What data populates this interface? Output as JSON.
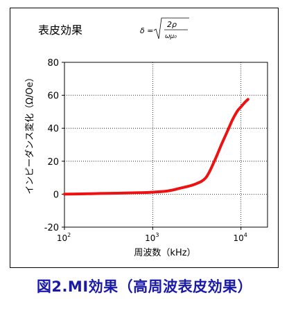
{
  "caption": "図2.MI効果（高周波表皮効果）",
  "colors": {
    "series": "#ee1111",
    "caption": "#1a1aa8",
    "axis": "#000000",
    "grid": "#000000"
  },
  "chart_data": {
    "type": "line",
    "title": "表皮効果",
    "formula": {
      "lhs": "δ =",
      "numerator": "2ρ",
      "denominator": "ωμ₀"
    },
    "xlabel": "周波数（kHz）",
    "ylabel": "インピーダンス変化（Ω/Oe）",
    "xscale": "log",
    "xlim": [
      100,
      20000
    ],
    "ylim": [
      -20,
      80
    ],
    "yticks": [
      -20,
      0,
      20,
      40,
      60,
      80
    ],
    "xticks": [
      {
        "value": 100,
        "base": "10",
        "exp": "2"
      },
      {
        "value": 1000,
        "base": "10",
        "exp": "3"
      },
      {
        "value": 10000,
        "base": "10",
        "exp": "4"
      }
    ],
    "grid": "dotted",
    "series": [
      {
        "x": [
          100,
          200,
          400,
          700,
          1000,
          1500,
          2000,
          3000,
          4000,
          5000,
          6000,
          7000,
          8000,
          9000,
          10000,
          11000,
          12000
        ],
        "y": [
          0,
          0.3,
          0.6,
          0.9,
          1.2,
          2.0,
          3.5,
          6.0,
          10.0,
          20.0,
          30.0,
          38.0,
          45.0,
          50.0,
          53.0,
          55.5,
          57.5
        ]
      }
    ]
  }
}
